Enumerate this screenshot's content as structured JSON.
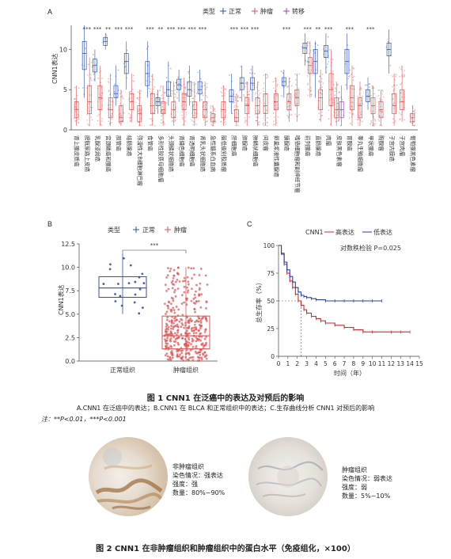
{
  "panel_a": {
    "letter": "A",
    "legend_title": "类型",
    "legend_items": [
      "正常",
      "肿瘤",
      "转移"
    ],
    "ylabel": "CNN1表达",
    "yticks": [
      "0",
      "5",
      "10"
    ],
    "significance": [
      "***",
      "***",
      "**",
      "***",
      "***",
      "***",
      "**",
      "***",
      "***",
      "***",
      "***",
      "***",
      "***",
      "***",
      "***",
      "***",
      "**",
      "***",
      "***",
      "***"
    ],
    "xlabels": [
      "肾上腺皮质癌",
      "膀胱尿路上皮癌",
      "乳腺浸润癌",
      "宫颈鳞癌和腺癌",
      "胆管癌",
      "结肠腺癌",
      "弥漫性大B细胞淋巴瘤",
      "食管癌",
      "多形性胶质母细胞瘤",
      "头颈鳞状细胞癌",
      "肾嫌色细胞癌",
      "肾透明细胞癌",
      "肾乳头状细胞癌",
      "急性髓系白血病",
      "脑低级别胶质瘤",
      "肝细胞癌",
      "肺腺癌",
      "肺鳞状细胞癌",
      "间皮瘤",
      "卵巢浆液性囊腺癌",
      "胰腺癌",
      "嗜铬细胞瘤和副神经节瘤",
      "前列腺癌",
      "直肠腺癌",
      "肉瘤",
      "皮肤黑色素瘤",
      "胃腺癌",
      "睾丸生殖细胞瘤",
      "甲状腺癌",
      "胸腺瘤",
      "子宫内膜癌",
      "子宫肉瘤",
      "葡萄膜黑色素瘤"
    ]
  },
  "panel_b": {
    "letter": "B",
    "legend_title": "类型",
    "legend_items": [
      "正常",
      "肿瘤"
    ],
    "ylabel": "CNN1表达",
    "significance": "***",
    "categories": [
      "正常组织",
      "肿瘤组织"
    ]
  },
  "panel_c": {
    "letter": "C",
    "legend_title": "CNN1",
    "legend_items": [
      "高表达",
      "低表达"
    ],
    "pvalue": "对数秩检验 P=0.025",
    "ylabel": "总生存率（%）",
    "xlabel": "时间（年）"
  },
  "chart_data": [
    {
      "type": "box",
      "title": "",
      "ylabel": "CNN1表达",
      "ylim": [
        0,
        13
      ],
      "yticks": [
        0,
        5,
        10
      ],
      "series": [
        {
          "name": "正常",
          "color": "#2b4fb8"
        },
        {
          "name": "肿瘤",
          "color": "#e05050"
        },
        {
          "name": "转移",
          "color": "#9b3fc8"
        }
      ],
      "groups": [
        {
          "label": "肾上腺皮质癌",
          "tumor": [
            0.5,
            1.5,
            2.5,
            3.5,
            5.5
          ]
        },
        {
          "label": "膀胱尿路上皮癌",
          "normal": [
            4,
            7.5,
            9.5,
            11,
            13
          ],
          "tumor": [
            0.5,
            2,
            3.5,
            5.5,
            9
          ]
        },
        {
          "label": "乳腺浸润癌",
          "normal": [
            6,
            7.2,
            8,
            8.8,
            10
          ],
          "tumor": [
            0.5,
            2.5,
            4,
            5.5,
            8
          ]
        },
        {
          "label": "宫颈鳞癌和腺癌",
          "normal": [
            10,
            10.5,
            11,
            11.5,
            12
          ],
          "tumor": [
            0.5,
            1.5,
            2.5,
            4,
            7
          ]
        },
        {
          "label": "胆管癌",
          "normal": [
            3,
            4,
            4.5,
            5.5,
            8
          ],
          "tumor": [
            0.5,
            1,
            1.5,
            3,
            5
          ]
        },
        {
          "label": "结肠腺癌",
          "normal": [
            5,
            7,
            8.5,
            9.5,
            11
          ],
          "tumor": [
            1,
            2.5,
            3.5,
            4.5,
            7
          ]
        },
        {
          "label": "弥漫性大B细胞淋巴瘤",
          "tumor": [
            0.5,
            1,
            2,
            3,
            5
          ]
        },
        {
          "label": "食管癌",
          "normal": [
            4,
            5.5,
            7,
            8.5,
            11
          ],
          "tumor": [
            0.5,
            2,
            3,
            4.5,
            7
          ]
        },
        {
          "label": "多形性胶质母细胞瘤",
          "normal": [
            2,
            3,
            3.5,
            4,
            5
          ],
          "tumor": [
            0.5,
            2,
            2.5,
            3.5,
            5.5
          ]
        },
        {
          "label": "头颈鳞状细胞癌",
          "normal": [
            3,
            4.2,
            5,
            6,
            8.5
          ],
          "tumor": [
            0.5,
            1.5,
            2.5,
            3.5,
            6
          ]
        },
        {
          "label": "肾嫌色细胞癌",
          "normal": [
            3.5,
            5,
            5.6,
            6.3,
            7.5
          ],
          "tumor": [
            0.5,
            2.5,
            3.5,
            4.5,
            6.5
          ]
        },
        {
          "label": "肾透明细胞癌",
          "normal": [
            3,
            4.2,
            5,
            6,
            8
          ],
          "tumor": [
            0.5,
            1.5,
            2.5,
            3.5,
            6
          ]
        },
        {
          "label": "肾乳头状细胞癌",
          "normal": [
            3.5,
            4.5,
            5,
            6,
            7.5
          ],
          "tumor": [
            0.5,
            1.5,
            2.5,
            3.5,
            6
          ]
        },
        {
          "label": "急性髓系白血病",
          "tumor": [
            0.5,
            1,
            1.5,
            2,
            3
          ]
        },
        {
          "label": "脑低级别胶质瘤",
          "tumor": [
            0.5,
            1.5,
            2.5,
            3.5,
            5.5
          ]
        },
        {
          "label": "肝细胞癌",
          "normal": [
            2,
            3.5,
            4.2,
            5,
            7
          ],
          "tumor": [
            0.5,
            1,
            1.5,
            2.5,
            4.5
          ]
        },
        {
          "label": "肺腺癌",
          "normal": [
            3.5,
            5,
            5.8,
            6.5,
            8
          ],
          "tumor": [
            0.5,
            2,
            3,
            4,
            6
          ]
        },
        {
          "label": "肺鳞状细胞癌",
          "normal": [
            3.5,
            5,
            5.8,
            6.5,
            8
          ],
          "tumor": [
            0.5,
            2,
            3,
            4,
            6
          ]
        },
        {
          "label": "间皮瘤",
          "tumor": [
            0.5,
            2,
            3,
            4.5,
            7
          ]
        },
        {
          "label": "卵巢浆液性囊腺癌",
          "tumor": [
            0.5,
            2.5,
            3.5,
            4.5,
            6.5
          ]
        },
        {
          "label": "胰腺癌",
          "normal": [
            4,
            5.5,
            6,
            6.5,
            7.5
          ],
          "tumor": [
            1,
            2.5,
            3.5,
            4.5,
            6.5
          ]
        },
        {
          "label": "嗜铬细胞瘤和副神经节瘤",
          "tumor": [
            1,
            3,
            4,
            5,
            7
          ]
        },
        {
          "label": "前列腺癌",
          "normal": [
            8,
            9.5,
            10.2,
            10.8,
            12
          ],
          "tumor": [
            4,
            7,
            8,
            9,
            11
          ]
        },
        {
          "label": "直肠腺癌",
          "normal": [
            4,
            7,
            8.5,
            10,
            11
          ],
          "tumor": [
            1,
            2.5,
            4,
            5,
            7.5
          ]
        },
        {
          "label": "肉瘤",
          "normal": [
            7,
            9,
            9.8,
            10.5,
            12
          ],
          "tumor": [
            0.5,
            3,
            5,
            7,
            10
          ]
        },
        {
          "label": "皮肤黑色素瘤",
          "tumor": [
            0.5,
            1.5,
            2.5,
            4,
            6
          ],
          "metastasis": [
            0.5,
            1.5,
            2.5,
            3.5,
            5.5
          ]
        },
        {
          "label": "胃腺癌",
          "normal": [
            5,
            7,
            8.5,
            10,
            12
          ],
          "tumor": [
            0.5,
            2.5,
            4,
            5.5,
            8
          ]
        },
        {
          "label": "睾丸生殖细胞瘤",
          "tumor": [
            0.5,
            1.5,
            3,
            4,
            6
          ]
        },
        {
          "label": "甲状腺癌",
          "normal": [
            2.5,
            3.5,
            4.2,
            5,
            6.5
          ],
          "tumor": [
            0.5,
            2,
            3,
            4,
            5.5
          ]
        },
        {
          "label": "胸腺瘤",
          "tumor": [
            0.5,
            1.5,
            2.5,
            3.5,
            5
          ]
        },
        {
          "label": "子宫内膜癌",
          "normal": [
            7,
            9.2,
            10,
            10.8,
            12.5
          ],
          "tumor": [
            0.5,
            2,
            3,
            4.5,
            7
          ]
        },
        {
          "label": "子宫肉瘤",
          "tumor": [
            1,
            2.5,
            3.5,
            5,
            8
          ]
        },
        {
          "label": "葡萄膜黑色素瘤",
          "tumor": [
            0.5,
            1,
            1.5,
            2,
            3
          ]
        }
      ]
    },
    {
      "type": "box",
      "title": "",
      "ylabel": "CNN1表达",
      "ylim": [
        0,
        12.5
      ],
      "yticks": [
        0,
        2.5,
        5.0,
        7.5,
        10.0,
        12.5
      ],
      "categories": [
        "正常组织",
        "肿瘤组织"
      ],
      "series": [
        {
          "name": "正常",
          "color": "#2b4fb8",
          "stats": [
            5,
            6.8,
            7.8,
            9.0,
            11.5
          ]
        },
        {
          "name": "肿瘤",
          "color": "#e05050",
          "stats": [
            0,
            1.3,
            2.7,
            4.8,
            10
          ]
        }
      ]
    },
    {
      "type": "line",
      "title": "",
      "xlabel": "时间（年）",
      "ylabel": "总生存率（%）",
      "xlim": [
        0,
        15
      ],
      "ylim": [
        0,
        100
      ],
      "xticks": [
        0,
        1,
        2,
        3,
        4,
        5,
        6,
        7,
        8,
        9,
        10,
        11,
        12,
        13,
        14,
        15
      ],
      "yticks": [
        0,
        25,
        50,
        75,
        100
      ],
      "series": [
        {
          "name": "高表达",
          "color": "#d62a2a",
          "x": [
            0,
            0.3,
            0.6,
            0.9,
            1.2,
            1.5,
            1.8,
            2.1,
            2.4,
            2.7,
            3.0,
            3.5,
            4.0,
            4.5,
            5.0,
            6.0,
            7.0,
            8.0,
            9.0,
            10.0,
            12.0,
            13.0,
            14.0
          ],
          "y": [
            100,
            92,
            83,
            75,
            68,
            62,
            56,
            50,
            46,
            42,
            39,
            36,
            34,
            32,
            30,
            28,
            26,
            24,
            22,
            22,
            22,
            22,
            22
          ]
        },
        {
          "name": "低表达",
          "color": "#2a3fb0",
          "x": [
            0,
            0.3,
            0.6,
            0.9,
            1.2,
            1.5,
            1.8,
            2.1,
            2.4,
            2.7,
            3.0,
            3.5,
            4.0,
            5.0,
            6.0,
            7.0,
            8.0,
            9.0,
            10.0,
            11.0
          ],
          "y": [
            100,
            93,
            85,
            78,
            72,
            67,
            62,
            58,
            55,
            54,
            53,
            52,
            51,
            50,
            50,
            50,
            50,
            50,
            50,
            50
          ]
        }
      ]
    }
  ],
  "figure1": {
    "caption": "图 1    CNN1 在泛癌中的表达及对预后的影响",
    "note1": "A.CNN1 在泛癌中的表达；B.CNN1 在 BLCA 和正常组织中的表达；C.生存曲线分析 CNN1 对预后的影响",
    "note2": "注：**P<0.01，***P<0.001"
  },
  "figure2": {
    "left_lines": [
      "非肿瘤组织",
      "染色情况：强表达",
      "强度：强",
      "数量：80%~90%"
    ],
    "right_lines": [
      "肿瘤组织",
      "染色情况：弱表达",
      "强度：弱",
      "数量：5%~10%"
    ],
    "caption": "图 2    CNN1 在非肿瘤组织和肿瘤组织中的蛋白水平（免疫组化，×100）"
  }
}
